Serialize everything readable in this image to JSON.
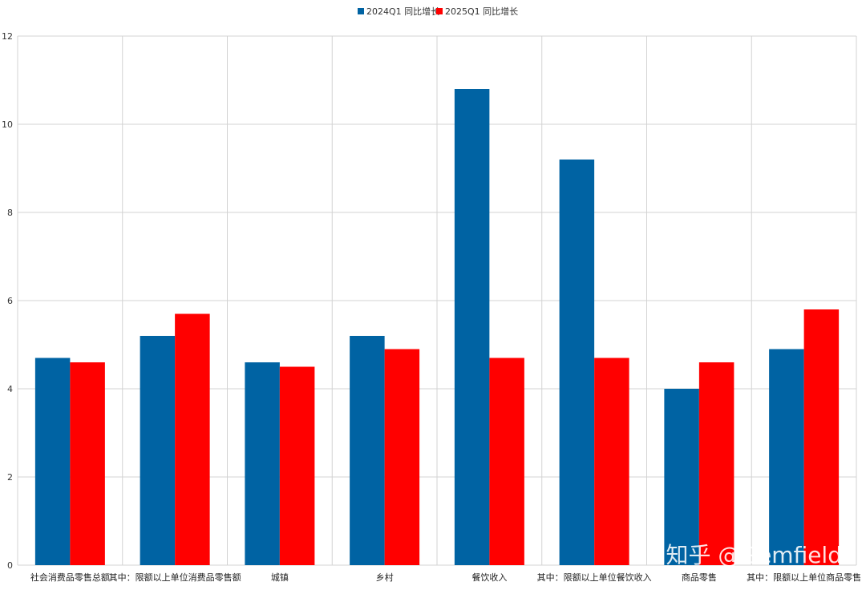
{
  "chart_data": {
    "type": "bar",
    "categories": [
      "社会消费品零售总额",
      "其中：限额以上单位消费品零售额",
      "城镇",
      "乡村",
      "餐饮收入",
      "其中：限额以上单位餐饮收入",
      "商品零售",
      "其中：限额以上单位商品零售"
    ],
    "series": [
      {
        "name": "2024Q1 同比增长",
        "color": "#0063a3",
        "values": [
          4.7,
          5.2,
          4.6,
          5.2,
          10.8,
          9.2,
          4.0,
          4.9
        ]
      },
      {
        "name": "2025Q1 同比增长",
        "color": "#ff0000",
        "values": [
          4.6,
          5.7,
          4.5,
          4.9,
          4.7,
          4.7,
          4.6,
          5.8
        ]
      }
    ],
    "ylim": [
      0,
      12
    ],
    "yticks": [
      0,
      2,
      4,
      6,
      8,
      10,
      12
    ],
    "grid": true,
    "legend": "top-center"
  },
  "watermark": "知乎 @Gemfield"
}
